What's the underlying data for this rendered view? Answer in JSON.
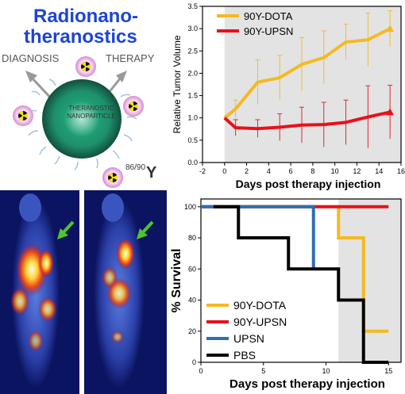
{
  "header": {
    "title_line1": "Radionano-",
    "title_line2": "theranostics"
  },
  "schematic": {
    "diagnosis_label": "DIAGNOSIS",
    "therapy_label": "THERAPY",
    "particle_label_line1": "THERANOSTIC",
    "particle_label_line2": "NANOPARTICLE",
    "isotope_superscript": "86/90",
    "isotope_symbol": "Y",
    "colors": {
      "particle": "#2bb587",
      "arrow": "#999999",
      "radiation_bg": "#f2b8e8"
    }
  },
  "imaging": {
    "arrow_color": "#4cc62f"
  },
  "chart_data": [
    {
      "type": "line",
      "xlabel": "Days post therapy injection",
      "ylabel": "Relative Tumor Volume",
      "xlim": [
        -2,
        16
      ],
      "ylim": [
        0.0,
        3.5
      ],
      "xticks": [
        "-2",
        "0",
        "2",
        "4",
        "6",
        "8",
        "10",
        "12",
        "14",
        "16"
      ],
      "yticks": [
        "0.0",
        "0.5",
        "1.0",
        "1.5",
        "2.0",
        "2.5",
        "3.0",
        "3.5"
      ],
      "legend_position": "top-left",
      "background": "#e3e3e3",
      "series": [
        {
          "name": "90Y-DOTA",
          "color": "#f5b921",
          "x": [
            0,
            1,
            3,
            5,
            7,
            9,
            11,
            13,
            15
          ],
          "y": [
            1.0,
            1.2,
            1.8,
            1.9,
            2.2,
            2.35,
            2.7,
            2.75,
            3.0
          ],
          "err": [
            0.0,
            0.2,
            0.5,
            0.5,
            0.6,
            0.6,
            0.4,
            0.6,
            0.4
          ]
        },
        {
          "name": "90Y-UPSN",
          "color": "#e8111a",
          "x": [
            0,
            1,
            3,
            5,
            7,
            9,
            11,
            13,
            15
          ],
          "y": [
            1.0,
            0.78,
            0.76,
            0.79,
            0.84,
            0.85,
            0.9,
            1.02,
            1.13
          ],
          "err": [
            0.0,
            0.18,
            0.2,
            0.3,
            0.4,
            0.5,
            0.5,
            0.7,
            0.6
          ]
        }
      ]
    },
    {
      "type": "line",
      "step": true,
      "xlabel": "Days post therapy injection",
      "ylabel": "% Survival",
      "xlim": [
        0,
        16
      ],
      "ylim": [
        0,
        105
      ],
      "xticks": [
        "0",
        "5",
        "10",
        "15"
      ],
      "yticks": [
        "0",
        "20",
        "40",
        "60",
        "80",
        "100"
      ],
      "legend_position": "bottom-left",
      "background": "#e3e3e3",
      "series": [
        {
          "name": "90Y-DOTA",
          "color": "#f5b921",
          "x": [
            0,
            11,
            11,
            13,
            13,
            15
          ],
          "y": [
            100,
            100,
            80,
            80,
            20,
            20
          ]
        },
        {
          "name": "90Y-UPSN",
          "color": "#e8111a",
          "x": [
            0,
            15
          ],
          "y": [
            100,
            100
          ]
        },
        {
          "name": "UPSN",
          "color": "#2f6db5",
          "x": [
            0,
            9,
            9
          ],
          "y": [
            100,
            100,
            60
          ]
        },
        {
          "name": "PBS",
          "color": "#000000",
          "x": [
            1,
            3,
            3,
            7,
            7,
            11,
            11,
            13,
            13,
            15
          ],
          "y": [
            100,
            100,
            80,
            80,
            60,
            60,
            40,
            40,
            0,
            0
          ]
        }
      ]
    }
  ]
}
